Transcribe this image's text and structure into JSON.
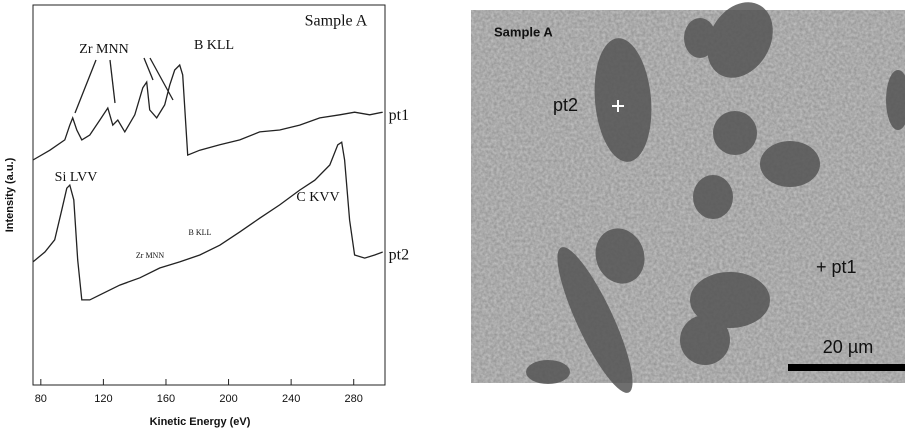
{
  "chart_data": {
    "type": "line",
    "xlabel": "Kinetic Energy (eV)",
    "ylabel": "Intensity (a.u.)",
    "xlim": [
      75,
      300
    ],
    "xticks": [
      80,
      120,
      160,
      200,
      240,
      280
    ],
    "ylim": [
      0,
      100
    ],
    "annotations": [
      "Sample A",
      "Zr MNN",
      "B KLL",
      "Si LVV",
      "C KVV",
      "Zr MNN",
      "B KLL"
    ],
    "series": [
      {
        "name": "pt1",
        "color": "#222222",
        "x": [
          75,
          85.8,
          95.3,
          98.5,
          100.4,
          103,
          106.2,
          111.3,
          117.7,
          122.8,
          126,
          129.2,
          133.7,
          140.1,
          145.2,
          147.7,
          149.6,
          154.1,
          159.2,
          162.4,
          165.6,
          168.8,
          170.7,
          173.9,
          181.6,
          194.4,
          207.2,
          219.9,
          232.7,
          245.5,
          258.3,
          271.1,
          280.6,
          290.2,
          298.5
        ],
        "values": [
          59.2,
          61.8,
          64.5,
          68.4,
          70.3,
          67.1,
          64.5,
          65.8,
          69.7,
          72.9,
          68.4,
          69.7,
          66.6,
          71.1,
          78.2,
          79.7,
          72.4,
          70.3,
          73.7,
          78.9,
          82.9,
          84.2,
          81.6,
          60.5,
          61.8,
          63.2,
          64.5,
          66.6,
          67.1,
          68.4,
          70.3,
          71.1,
          71.8,
          71.1,
          71.8
        ]
      },
      {
        "name": "pt2",
        "color": "#222222",
        "x": [
          75,
          82.6,
          88.9,
          93.4,
          96.6,
          98.5,
          101.1,
          103.6,
          106.2,
          111.3,
          117.7,
          130.5,
          143.3,
          156,
          168.8,
          181.6,
          194.4,
          207.2,
          219.9,
          232.7,
          245.5,
          255.1,
          264.7,
          269.8,
          272.3,
          274.2,
          277.4,
          280.6,
          287,
          293.4,
          298.5
        ],
        "values": [
          32.4,
          35,
          38.2,
          46.1,
          51.8,
          52.6,
          48.7,
          32.9,
          22.4,
          22.4,
          23.7,
          26.3,
          28.2,
          30.8,
          32.4,
          34.2,
          36.8,
          40.3,
          43.9,
          47.4,
          51.3,
          53.9,
          57.9,
          63.2,
          63.9,
          59.2,
          43.4,
          34.2,
          33.4,
          34.2,
          35
        ]
      }
    ]
  },
  "image": {
    "labels": [
      "Sample A",
      "pt2",
      "+ pt1",
      "20 µm"
    ]
  }
}
